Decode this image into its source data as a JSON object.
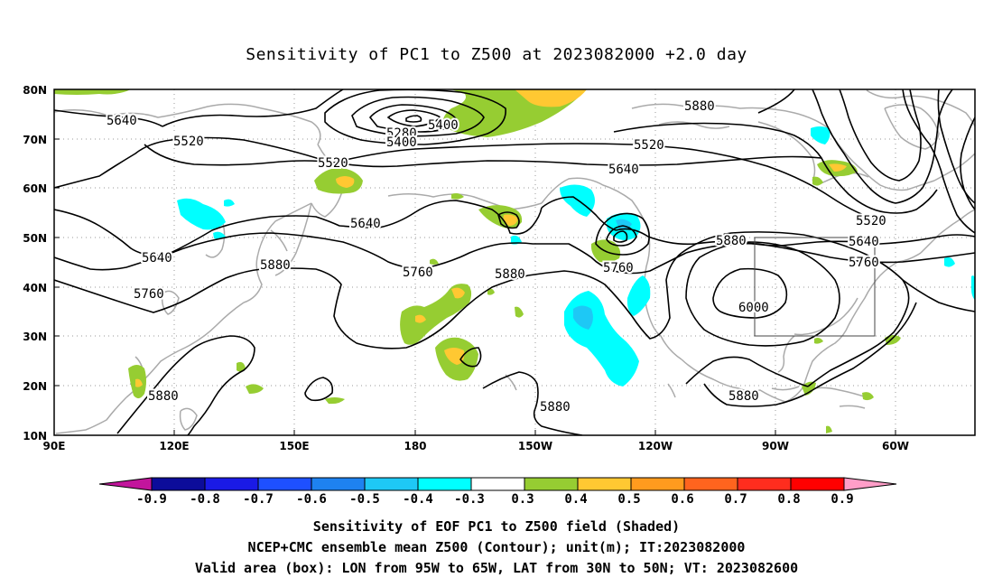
{
  "title": "Sensitivity of PC1 to Z500 at 2023082000 +2.0 day",
  "lat_labels": [
    "80N",
    "70N",
    "60N",
    "50N",
    "40N",
    "30N",
    "20N",
    "10N"
  ],
  "lon_labels": [
    "90E",
    "120E",
    "150E",
    "180",
    "150W",
    "120W",
    "90W",
    "60W"
  ],
  "contour_labels": [
    "5640",
    "5520",
    "5520",
    "5640",
    "5640",
    "5760",
    "5880",
    "5760",
    "5880",
    "5880",
    "5280",
    "5400",
    "5400",
    "5520",
    "5640",
    "5760",
    "5880",
    "6000",
    "5880",
    "5520",
    "5640",
    "5760",
    "5880",
    "5880"
  ],
  "colorbar": {
    "labels": [
      "-0.9",
      "-0.8",
      "-0.7",
      "-0.6",
      "-0.5",
      "-0.4",
      "-0.3",
      "0.3",
      "0.4",
      "0.5",
      "0.6",
      "0.7",
      "0.8",
      "0.9"
    ],
    "colors": [
      "#c2159c",
      "#0c0c9a",
      "#1a1ae6",
      "#1e50ff",
      "#1e82f0",
      "#1ec8f5",
      "#00ffff",
      "#ffffff",
      "#96cd32",
      "#ffc832",
      "#ff9b1e",
      "#ff641e",
      "#ff2d1e",
      "#ff0000",
      "#ff9ec8"
    ]
  },
  "captions": {
    "line1": "Sensitivity of EOF PC1 to Z500 field (Shaded)",
    "line2": "NCEP+CMC ensemble mean Z500 (Contour); unit(m); IT:2023082000",
    "line3": "Valid area (box): LON from 95W to 65W, LAT from 30N to 50N; VT: 2023082600"
  }
}
